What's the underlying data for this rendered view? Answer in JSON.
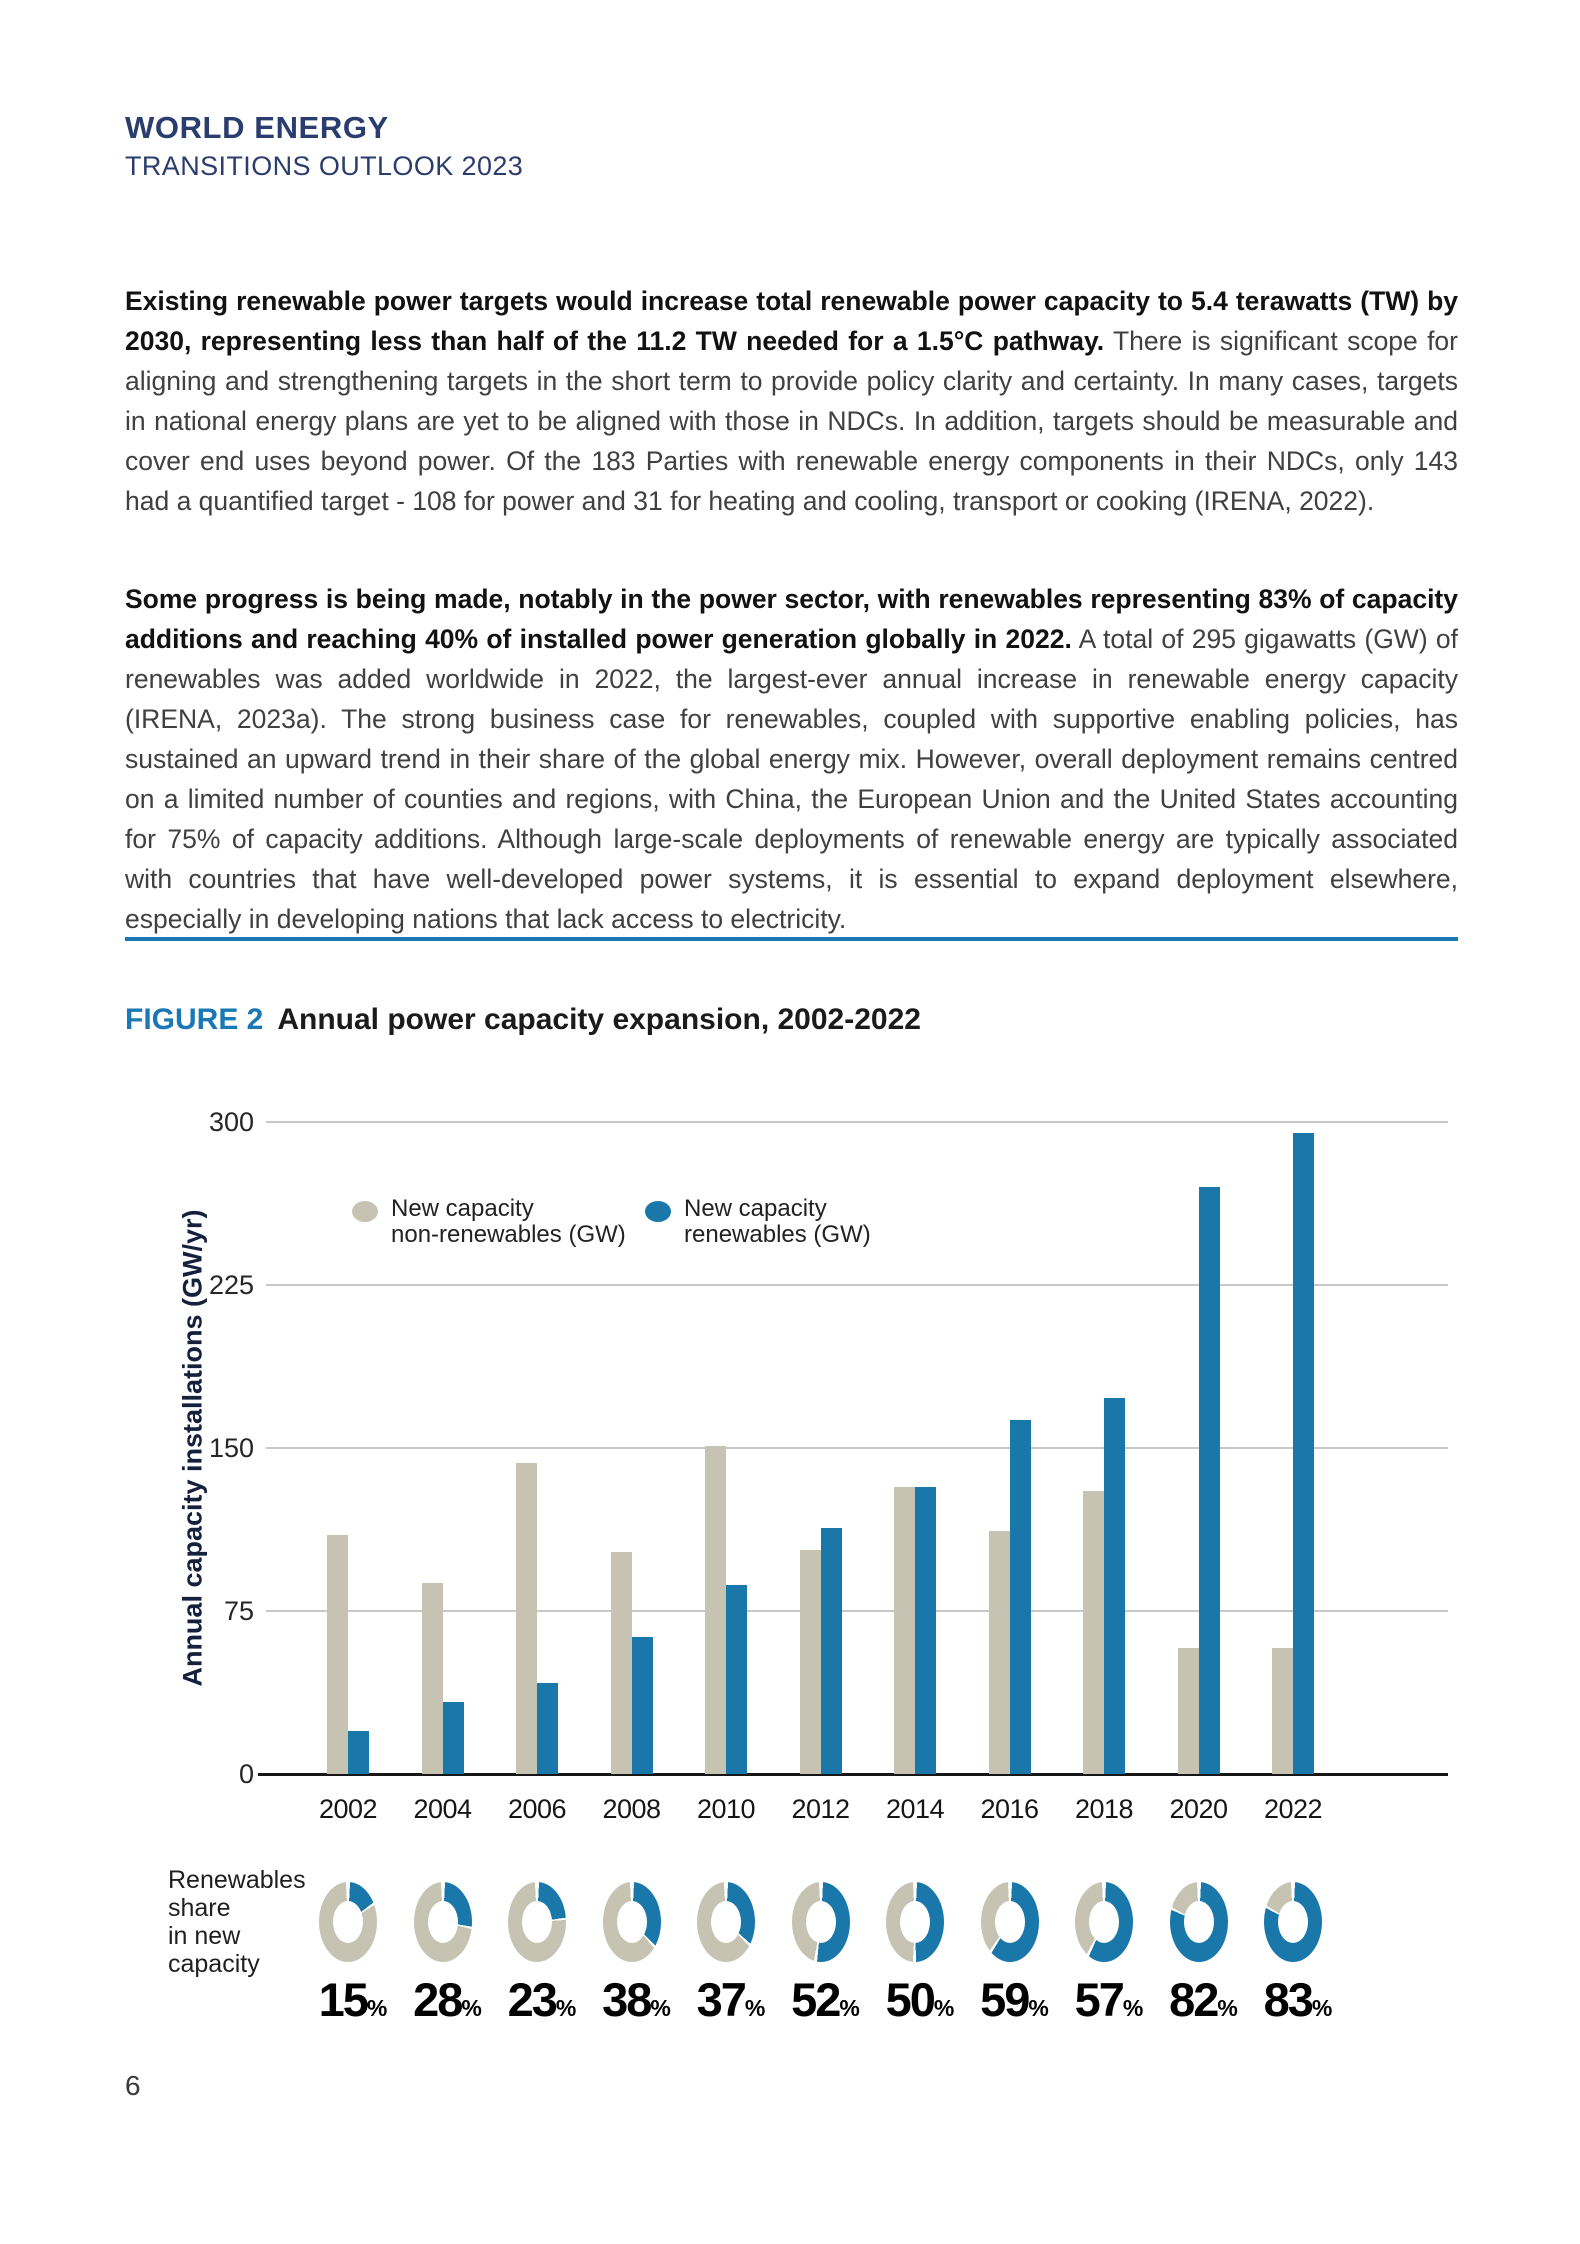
{
  "header": {
    "title_line1": "WORLD ENERGY",
    "title_line2": "TRANSITIONS OUTLOOK 2023"
  },
  "paragraphs": [
    {
      "bold": "Existing renewable power targets would increase total renewable power capacity to 5.4 terawatts (TW) by 2030, representing less than half of the 11.2 TW needed for a 1.5°C pathway.",
      "rest": " There is significant scope for aligning and strengthening targets in the short term to provide policy clarity and certainty. In many cases, targets in national energy plans are yet to be aligned with those in NDCs. In addition, targets should be measurable and cover end uses beyond power. Of the 183 Parties with renewable energy components in their NDCs, only 143 had a quantified target - 108 for power and 31 for heating and cooling, transport or cooking (IRENA, 2022)."
    },
    {
      "bold": "Some progress is being made, notably in the power sector, with renewables representing 83% of capacity additions and reaching 40% of installed power generation globally in 2022.",
      "rest": " A total of 295 gigawatts (GW) of renewables was added worldwide in 2022, the largest-ever annual increase in renewable energy capacity (IRENA, 2023a). The strong business case for renewables, coupled with supportive enabling policies, has sustained an upward trend in their share of the global energy mix. However, overall deployment remains centred on a limited number of counties and regions, with China, the European Union and the United States accounting for 75% of capacity additions. Although large-scale deployments of renewable energy are typically associated with countries that have well-developed power systems, it is essential to expand deployment elsewhere, especially in developing nations that lack access to electricity."
    }
  ],
  "figure": {
    "label": "FIGURE 2",
    "title": "Annual power capacity expansion, 2002-2022"
  },
  "chart_data": {
    "type": "bar",
    "title": "Annual power capacity expansion, 2002-2022",
    "ylabel": "Annual capacity installations (GW/yr)",
    "ylim": [
      0,
      300
    ],
    "yticks": [
      0,
      75,
      150,
      225,
      300
    ],
    "grid": "horizontal",
    "legend_position": "top-left-inside",
    "categories": [
      "2002",
      "2004",
      "2006",
      "2008",
      "2010",
      "2012",
      "2014",
      "2016",
      "2018",
      "2020",
      "2022"
    ],
    "series": [
      {
        "name": "New capacity non-renewables (GW)",
        "legend_line1": "New capacity",
        "legend_line2": "non-renewables (GW)",
        "color": "#c6c3b2",
        "values": [
          110,
          88,
          143,
          102,
          151,
          103,
          132,
          112,
          130,
          58,
          58
        ]
      },
      {
        "name": "New capacity renewables (GW)",
        "legend_line1": "New capacity",
        "legend_line2": "renewables (GW)",
        "color": "#1a77a9",
        "values": [
          20,
          33,
          42,
          63,
          87,
          113,
          132,
          163,
          173,
          270,
          295
        ]
      }
    ],
    "renewables_share": {
      "label": "Renewables\nshare\nin new\ncapacity",
      "values_pct": [
        15,
        28,
        23,
        38,
        37,
        52,
        50,
        59,
        57,
        82,
        83
      ]
    }
  },
  "colors": {
    "masthead_navy": "#2b3d6e",
    "rule_blue": "#1a78b4",
    "figure_label_blue": "#1a78b4",
    "bar_nonrenewables": "#c6c3b2",
    "bar_renewables": "#1a77a9",
    "gridline": "#c8c8c6",
    "body_text": "#404040"
  },
  "page_number": "6"
}
